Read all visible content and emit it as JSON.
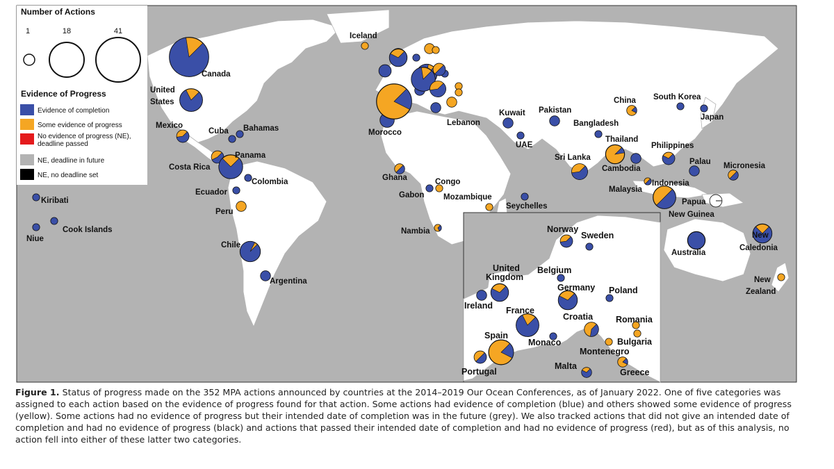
{
  "legend": {
    "size_title": "Number of Actions",
    "sizes": [
      {
        "label": "1",
        "value": 1
      },
      {
        "label": "18",
        "value": 18
      },
      {
        "label": "41",
        "value": 41
      }
    ],
    "status_title": "Evidence of Progress",
    "statuses": [
      {
        "key": "completion",
        "label": "Evidence of completion",
        "color": "#3a4fa7"
      },
      {
        "key": "some",
        "label": "Some evidence of progress",
        "color": "#f5a623"
      },
      {
        "key": "none_passed",
        "label_line1": "No evidence of progress (NE),",
        "label_line2": "deadline passed",
        "color": "#e41a1c"
      },
      {
        "key": "future",
        "label": "NE, deadline in future",
        "color": "#b3b3b3"
      },
      {
        "key": "nodeadline",
        "label": "NE, no deadline set",
        "color": "#000000"
      }
    ]
  },
  "colors": {
    "completion": "#3a4fa7",
    "some": "#f5a623",
    "future": "#ffffff",
    "ocean": "#b3b3b3",
    "land": "#ffffff"
  },
  "countries": [
    {
      "name": "Canada",
      "completion": 0.85,
      "total": 30
    },
    {
      "name": "United States",
      "completion": 0.8,
      "total": 10
    },
    {
      "name": "Mexico",
      "completion": 0.6,
      "total": 3
    },
    {
      "name": "Cuba",
      "completion": 1.0,
      "total": 1
    },
    {
      "name": "Bahamas",
      "completion": 1.0,
      "total": 1
    },
    {
      "name": "Costa Rica",
      "completion": 0.55,
      "total": 3
    },
    {
      "name": "Panama",
      "completion": 0.75,
      "total": 11
    },
    {
      "name": "Colombia",
      "completion": 1.0,
      "total": 1
    },
    {
      "name": "Ecuador",
      "completion": 1.0,
      "total": 1
    },
    {
      "name": "Peru",
      "completion": 0.0,
      "total": 2
    },
    {
      "name": "Chile",
      "completion": 0.95,
      "total": 8
    },
    {
      "name": "Argentina",
      "completion": 1.0,
      "total": 2
    },
    {
      "name": "Kiribati",
      "completion": 1.0,
      "total": 1
    },
    {
      "name": "Cook Islands",
      "completion": 1.0,
      "total": 1
    },
    {
      "name": "Niue",
      "completion": 1.0,
      "total": 1
    },
    {
      "name": "Iceland",
      "completion": 0.0,
      "total": 1
    },
    {
      "name": "Morocco",
      "completion": 1.0,
      "total": 4
    },
    {
      "name": "Ghana",
      "completion": 0.5,
      "total": 2
    },
    {
      "name": "Gabon",
      "completion": 1.0,
      "total": 1
    },
    {
      "name": "Congo",
      "completion": 0.0,
      "total": 1
    },
    {
      "name": "Mozambique",
      "completion": 0.0,
      "total": 1
    },
    {
      "name": "Nambia",
      "completion": 0.3,
      "total": 1
    },
    {
      "name": "Seychelles",
      "completion": 1.0,
      "total": 1
    },
    {
      "name": "Lebanon",
      "completion": 0.0,
      "total": 2
    },
    {
      "name": "Kuwait",
      "completion": 1.0,
      "total": 2
    },
    {
      "name": "UAE",
      "completion": 1.0,
      "total": 1
    },
    {
      "name": "Pakistan",
      "completion": 1.0,
      "total": 2
    },
    {
      "name": "Bangladesh",
      "completion": 1.0,
      "total": 1
    },
    {
      "name": "China",
      "completion": 0.2,
      "total": 2
    },
    {
      "name": "South Korea",
      "completion": 1.0,
      "total": 1
    },
    {
      "name": "Japan",
      "completion": 1.0,
      "total": 1
    },
    {
      "name": "Sri Lanka",
      "completion": 0.6,
      "total": 5
    },
    {
      "name": "Thailand",
      "completion": 0.1,
      "total": 7
    },
    {
      "name": "Cambodia",
      "completion": 1.0,
      "total": 2
    },
    {
      "name": "Philippines",
      "completion": 0.7,
      "total": 3
    },
    {
      "name": "Palau",
      "completion": 1.0,
      "total": 2
    },
    {
      "name": "Micronesia",
      "completion": 0.5,
      "total": 2
    },
    {
      "name": "Malaysia",
      "completion": 0.5,
      "total": 1
    },
    {
      "name": "Indonesia",
      "completion": 0.5,
      "total": 10
    },
    {
      "name": "Papua New Guinea",
      "completion": 0.0,
      "total": 3,
      "future": 1.0
    },
    {
      "name": "Australia",
      "completion": 1.0,
      "total": 6
    },
    {
      "name": "New Caledonia",
      "completion": 0.75,
      "total": 7
    },
    {
      "name": "New Zealand",
      "completion": 0.0,
      "total": 1
    },
    {
      "name": "Norway",
      "completion": 0.6,
      "total": 3
    },
    {
      "name": "Sweden",
      "completion": 1.0,
      "total": 1
    },
    {
      "name": "United Kingdom",
      "completion": 0.7,
      "total": 6
    },
    {
      "name": "Ireland",
      "completion": 1.0,
      "total": 2
    },
    {
      "name": "Belgium",
      "completion": 1.0,
      "total": 1
    },
    {
      "name": "Germany",
      "completion": 0.7,
      "total": 7
    },
    {
      "name": "Poland",
      "completion": 1.0,
      "total": 1
    },
    {
      "name": "France",
      "completion": 0.8,
      "total": 10
    },
    {
      "name": "Croatia",
      "completion": 0.4,
      "total": 4
    },
    {
      "name": "Romania",
      "completion": 0.0,
      "total": 1
    },
    {
      "name": "Bulgaria",
      "completion": 0.0,
      "total": 1
    },
    {
      "name": "Montenegro",
      "completion": 0.0,
      "total": 1
    },
    {
      "name": "Monaco",
      "completion": 1.0,
      "total": 1
    },
    {
      "name": "Spain",
      "completion": 0.2,
      "total": 12
    },
    {
      "name": "Portugal",
      "completion": 0.5,
      "total": 3
    },
    {
      "name": "Malta",
      "completion": 0.7,
      "total": 2
    },
    {
      "name": "Greece",
      "completion": 0.2,
      "total": 2
    }
  ],
  "europe_main_markers": [
    {
      "completion": 0.6,
      "total": 4
    },
    {
      "completion": 1.0,
      "total": 1
    },
    {
      "completion": 0.7,
      "total": 6
    },
    {
      "completion": 1.0,
      "total": 3
    },
    {
      "completion": 0.9,
      "total": 8
    },
    {
      "completion": 1.0,
      "total": 1
    },
    {
      "completion": 1.0,
      "total": 2
    },
    {
      "completion": 0.85,
      "total": 11
    },
    {
      "completion": 0.2,
      "total": 24
    },
    {
      "completion": 0.6,
      "total": 5
    },
    {
      "completion": 1.0,
      "total": 2
    },
    {
      "completion": 0.0,
      "total": 1
    },
    {
      "completion": 0.0,
      "total": 1
    },
    {
      "completion": 0.5,
      "total": 3
    },
    {
      "completion": 0.0,
      "total": 2
    },
    {
      "completion": 0.0,
      "total": 1
    }
  ],
  "caption": {
    "lead": "Figure 1.",
    "text": " Status of progress made on the 352 MPA actions announced by countries at the 2014–2019 Our Ocean Conferences, as of January 2022. One of five categories was assigned to each action based on the evidence of progress found for that action. Some actions had evidence of completion (blue) and others showed some evidence of progress (yellow). Some actions had no evidence of progress but their intended date of completion was in the future (grey). We also tracked actions that did not give an intended date of completion and had no evidence of progress (black) and actions that passed their intended date of completion and had no evidence of progress (red), but as of this analysis, no action fell into either of these latter two categories."
  }
}
